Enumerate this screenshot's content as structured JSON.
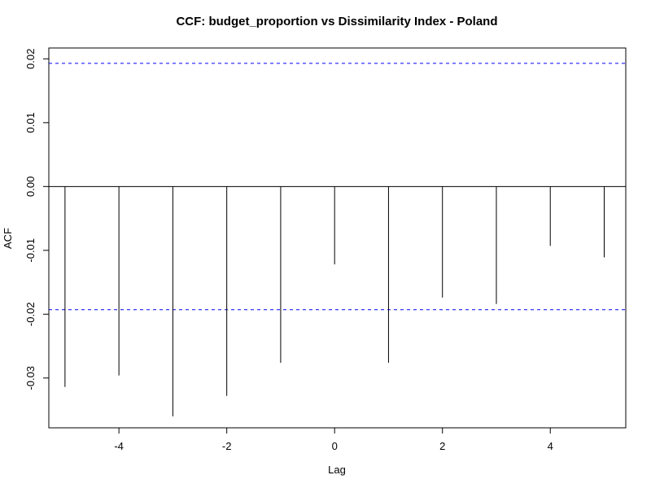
{
  "chart_data": {
    "type": "bar",
    "title": "CCF: budget_proportion vs Dissimilarity Index - Poland",
    "xlabel": "Lag",
    "ylabel": "ACF",
    "x": [
      -5,
      -4,
      -3,
      -2,
      -1,
      0,
      1,
      2,
      3,
      4,
      5
    ],
    "values": [
      -0.0314,
      -0.0296,
      -0.036,
      -0.0328,
      -0.0276,
      -0.0122,
      -0.0276,
      -0.0174,
      -0.0184,
      -0.0093,
      -0.0111
    ],
    "xlim": [
      -5.3,
      5.4
    ],
    "ylim": [
      -0.0378,
      0.0217
    ],
    "xticks": [
      -4,
      -2,
      0,
      2,
      4
    ],
    "xtick_labels": [
      "-4",
      "-2",
      "0",
      "2",
      "4"
    ],
    "yticks": [
      -0.03,
      -0.02,
      -0.01,
      0.0,
      0.01,
      0.02
    ],
    "ytick_labels": [
      "-0.03",
      "-0.02",
      "-0.01",
      "0.00",
      "0.01",
      "0.02"
    ],
    "confidence_limits": [
      0.0193,
      -0.0193
    ],
    "zero_line": 0,
    "colors": {
      "bars": "#000000",
      "confidence": "#0000ff",
      "zero": "#000000",
      "frame": "#000000"
    },
    "grid": false
  }
}
